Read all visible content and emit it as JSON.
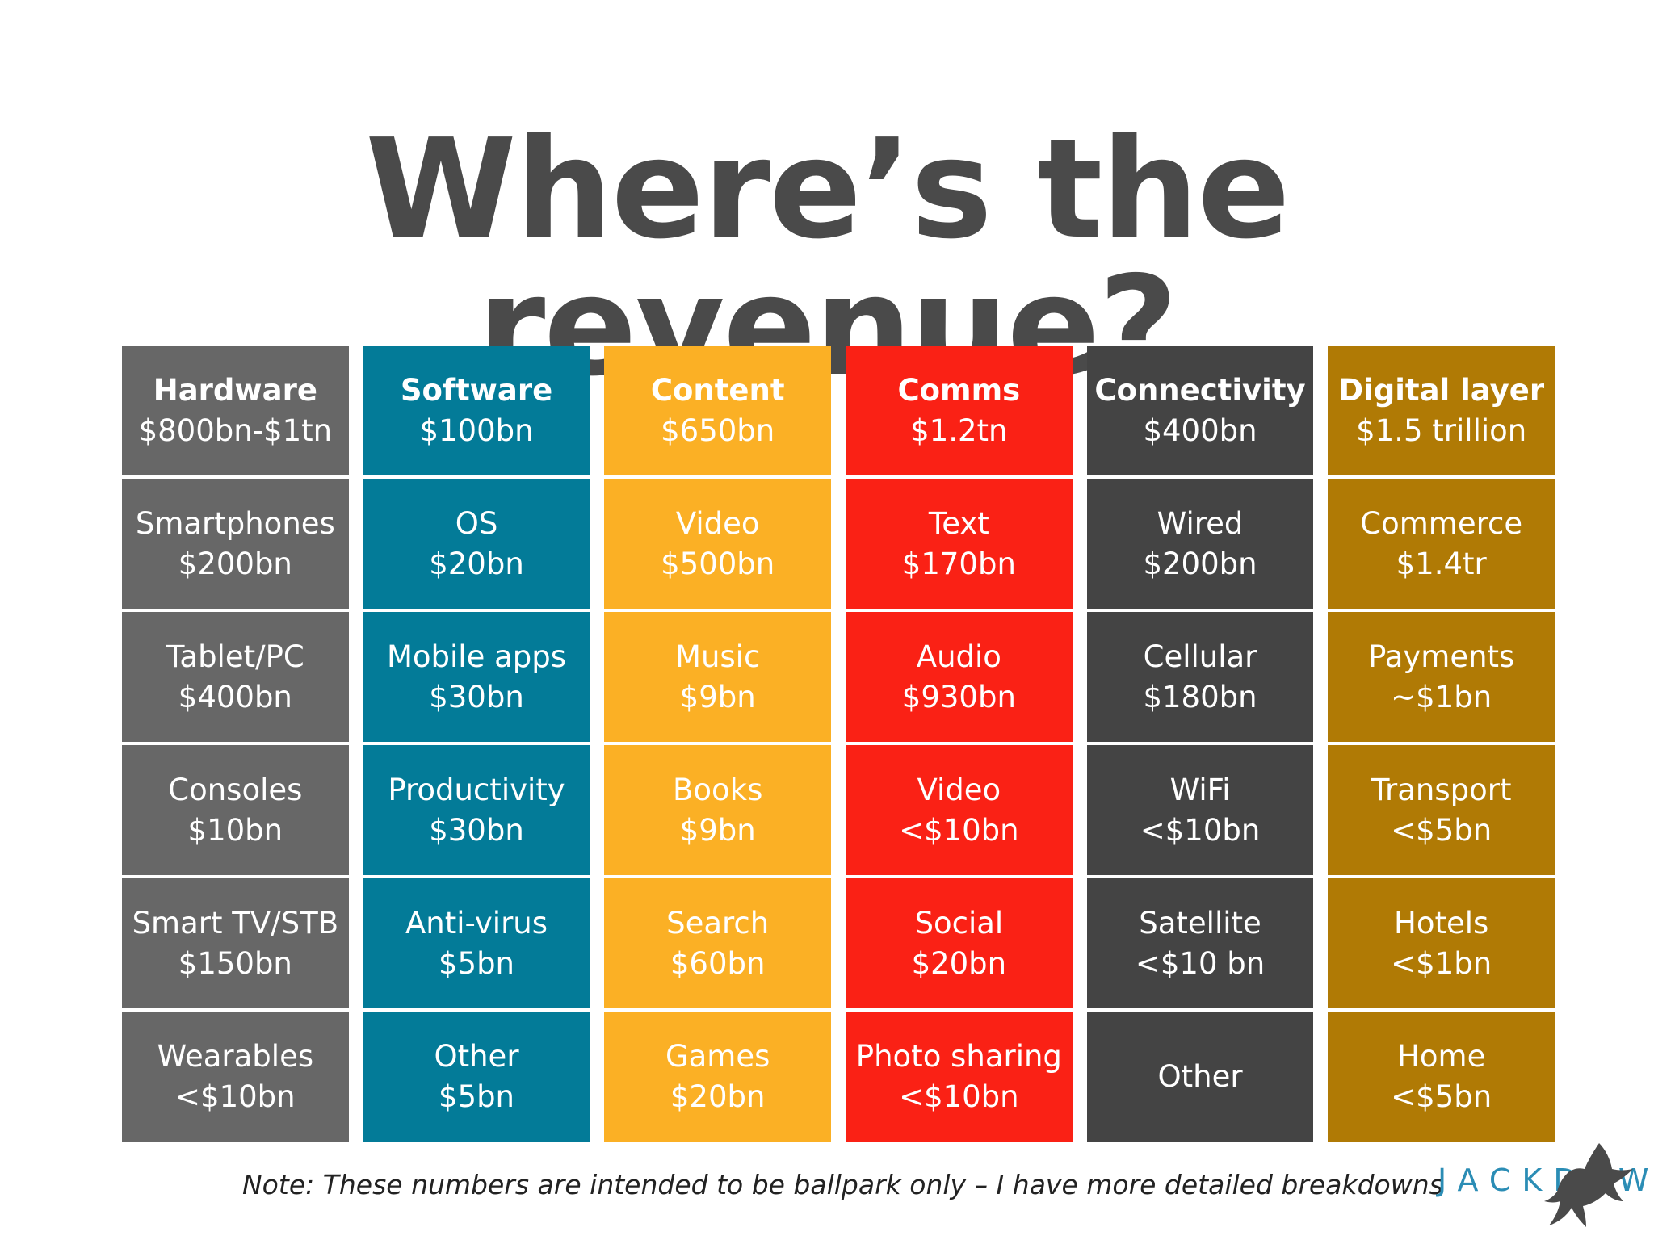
{
  "title": "Where’s the revenue?",
  "colors": {
    "hardware": "#676767",
    "software": "#037b98",
    "content": "#fbb025",
    "comms": "#fa2115",
    "connectivity": "#444444",
    "digital": "#b07a05"
  },
  "columns": [
    {
      "header": {
        "name": "Hardware",
        "value": "$800bn-$1tn"
      },
      "items": [
        {
          "name": "Smartphones",
          "value": "$200bn"
        },
        {
          "name": "Tablet/PC",
          "value": "$400bn"
        },
        {
          "name": "Consoles",
          "value": "$10bn"
        },
        {
          "name": "Smart TV/STB",
          "value": "$150bn"
        },
        {
          "name": "Wearables",
          "value": "<$10bn"
        }
      ]
    },
    {
      "header": {
        "name": "Software",
        "value": "$100bn"
      },
      "items": [
        {
          "name": "OS",
          "value": "$20bn"
        },
        {
          "name": "Mobile apps",
          "value": "$30bn"
        },
        {
          "name": "Productivity",
          "value": "$30bn"
        },
        {
          "name": "Anti-virus",
          "value": "$5bn"
        },
        {
          "name": "Other",
          "value": "$5bn"
        }
      ]
    },
    {
      "header": {
        "name": "Content",
        "value": "$650bn"
      },
      "items": [
        {
          "name": "Video",
          "value": "$500bn"
        },
        {
          "name": "Music",
          "value": "$9bn"
        },
        {
          "name": "Books",
          "value": "$9bn"
        },
        {
          "name": "Search",
          "value": "$60bn"
        },
        {
          "name": "Games",
          "value": "$20bn"
        }
      ]
    },
    {
      "header": {
        "name": "Comms",
        "value": "$1.2tn"
      },
      "items": [
        {
          "name": "Text",
          "value": "$170bn"
        },
        {
          "name": "Audio",
          "value": "$930bn"
        },
        {
          "name": "Video",
          "value": "<$10bn"
        },
        {
          "name": "Social",
          "value": "$20bn"
        },
        {
          "name": "Photo sharing",
          "value": "<$10bn"
        }
      ]
    },
    {
      "header": {
        "name": "Connectivity",
        "value": "$400bn"
      },
      "items": [
        {
          "name": "Wired",
          "value": "$200bn"
        },
        {
          "name": "Cellular",
          "value": "$180bn"
        },
        {
          "name": "WiFi",
          "value": "<$10bn"
        },
        {
          "name": "Satellite",
          "value": "<$10 bn"
        },
        {
          "name": "Other",
          "value": ""
        }
      ]
    },
    {
      "header": {
        "name": "Digital layer",
        "value": "$1.5 trillion"
      },
      "items": [
        {
          "name": "Commerce",
          "value": "$1.4tr"
        },
        {
          "name": "Payments",
          "value": "~$1bn"
        },
        {
          "name": "Transport",
          "value": "<$5bn"
        },
        {
          "name": "Hotels",
          "value": "<$1bn"
        },
        {
          "name": "Home",
          "value": "<$5bn"
        }
      ]
    }
  ],
  "note": "Note: These numbers are intended to be ballpark only – I have more detailed breakdowns",
  "logo": {
    "text": "JACKDAW",
    "icon": "jackdaw-bird-icon"
  }
}
